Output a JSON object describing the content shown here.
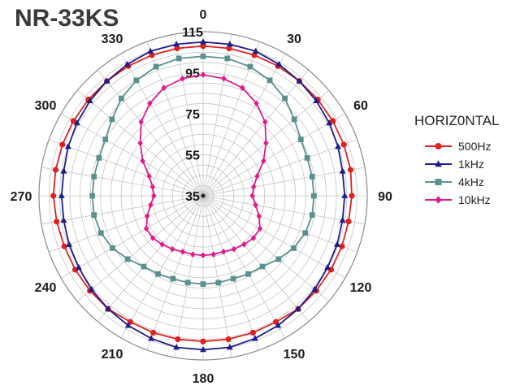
{
  "title": "NR-33KS",
  "chart_data": {
    "type": "polar-line",
    "title": "NR-33KS",
    "radial_ticks": [
      "35",
      "55",
      "75",
      "95",
      "115"
    ],
    "rlim": [
      35,
      115
    ],
    "angle_ticks": [
      "0",
      "30",
      "60",
      "90",
      "120",
      "150",
      "180",
      "210",
      "240",
      "270",
      "300",
      "330"
    ],
    "angular_step_deg": 10,
    "grid": true,
    "legend": {
      "title": "HORIZ0NTAL",
      "position": "right"
    },
    "series": [
      {
        "name": "500Hz",
        "color": "#e02020",
        "marker": "circle",
        "angles": [
          0,
          10,
          20,
          30,
          40,
          50,
          60,
          70,
          80,
          90,
          100,
          110,
          120,
          130,
          140,
          150,
          160,
          170,
          180,
          190,
          200,
          210,
          220,
          230,
          240,
          250,
          260,
          270,
          280,
          290,
          300,
          310,
          320,
          330,
          340,
          350
        ],
        "values": [
          108,
          108,
          108,
          108,
          108,
          108,
          108,
          108,
          108,
          107.5,
          107,
          107,
          107,
          107,
          107,
          106,
          106,
          106,
          106,
          106,
          106,
          106,
          107,
          107,
          107,
          107,
          107.5,
          108,
          108,
          108,
          108,
          108,
          108,
          108,
          108,
          108
        ]
      },
      {
        "name": "1kHz",
        "color": "#1c1c8c",
        "marker": "triangle",
        "angles": [
          0,
          10,
          20,
          30,
          40,
          50,
          60,
          70,
          80,
          90,
          100,
          110,
          120,
          130,
          140,
          150,
          160,
          170,
          180,
          190,
          200,
          210,
          220,
          230,
          240,
          250,
          260,
          270,
          280,
          290,
          300,
          310,
          320,
          330,
          340,
          350
        ],
        "values": [
          110,
          110,
          110,
          109,
          108,
          107,
          106,
          105,
          104,
          104,
          104,
          104.5,
          105,
          106,
          107,
          108,
          109,
          110,
          110,
          110,
          109,
          108,
          107,
          106,
          105,
          104.5,
          104,
          104,
          104,
          105,
          106,
          107,
          108,
          109,
          110,
          110
        ]
      },
      {
        "name": "4kHz",
        "color": "#5c9090",
        "marker": "square",
        "angles": [
          0,
          10,
          20,
          30,
          40,
          50,
          60,
          70,
          80,
          90,
          100,
          110,
          120,
          130,
          140,
          150,
          160,
          170,
          180,
          190,
          200,
          210,
          220,
          230,
          240,
          250,
          260,
          270,
          280,
          290,
          300,
          310,
          320,
          330,
          340,
          350
        ],
        "values": [
          103,
          103,
          102,
          100,
          97,
          93,
          90,
          89,
          89,
          89,
          89,
          88,
          86,
          83,
          80,
          79,
          78,
          78,
          78,
          78,
          78,
          79,
          80,
          83,
          86,
          88,
          89,
          89,
          89,
          89,
          90,
          93,
          97,
          100,
          102,
          103
        ]
      },
      {
        "name": "10kHz",
        "color": "#e01a8c",
        "marker": "diamond",
        "angles": [
          0,
          10,
          20,
          30,
          40,
          50,
          60,
          70,
          80,
          90,
          100,
          110,
          120,
          130,
          140,
          150,
          160,
          170,
          180,
          190,
          200,
          210,
          220,
          230,
          240,
          250,
          260,
          270,
          280,
          290,
          300,
          310,
          320,
          330,
          340,
          350
        ],
        "values": [
          94,
          93,
          91,
          87,
          82,
          75,
          69,
          63,
          60,
          59,
          61,
          64,
          67,
          67,
          66,
          65,
          64,
          64,
          64,
          64,
          64,
          65,
          66,
          67,
          67,
          64,
          61,
          59,
          60,
          63,
          69,
          75,
          82,
          87,
          91,
          93
        ]
      }
    ]
  }
}
